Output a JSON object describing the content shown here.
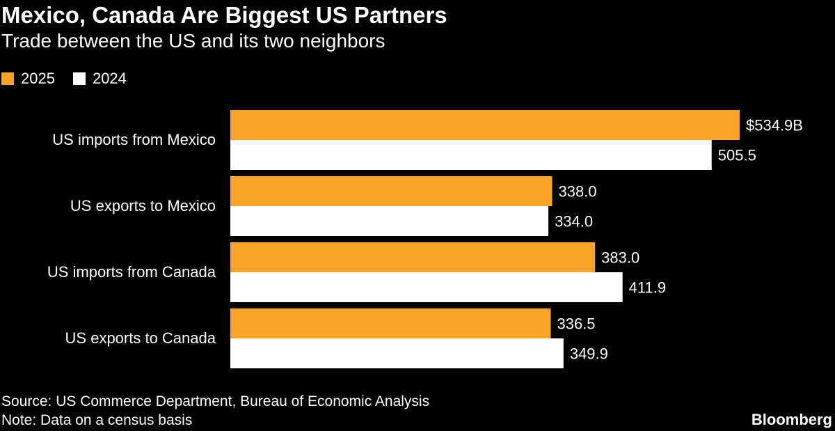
{
  "title": "Mexico, Canada Are Biggest US Partners",
  "subtitle": "Trade between the US and its two neighbors",
  "legend": [
    {
      "label": "2025",
      "color": "#FAA42A"
    },
    {
      "label": "2024",
      "color": "#FFFFFF"
    }
  ],
  "source": "Source: US Commerce Department, Bureau of Economic Analysis",
  "note": "Note: Data on a census basis",
  "brand": "Bloomberg",
  "chart_data": {
    "type": "bar",
    "orientation": "horizontal",
    "categories": [
      "US imports from Mexico",
      "US exports to Mexico",
      "US imports from Canada",
      "US exports to Canada"
    ],
    "series": [
      {
        "name": "2025",
        "color": "#FAA42A",
        "values": [
          534.9,
          338.0,
          383.0,
          336.5
        ],
        "labels": [
          "$534.9B",
          "338.0",
          "383.0",
          "336.5"
        ]
      },
      {
        "name": "2024",
        "color": "#FFFFFF",
        "values": [
          505.5,
          334.0,
          411.9,
          349.9
        ],
        "labels": [
          "505.5",
          "334.0",
          "411.9",
          "349.9"
        ]
      }
    ],
    "title": "Mexico, Canada Are Biggest US Partners",
    "xlabel": "",
    "ylabel": "",
    "xlim": [
      0,
      534.9
    ],
    "unit": "billions of US dollars",
    "legend_position": "top-left"
  }
}
